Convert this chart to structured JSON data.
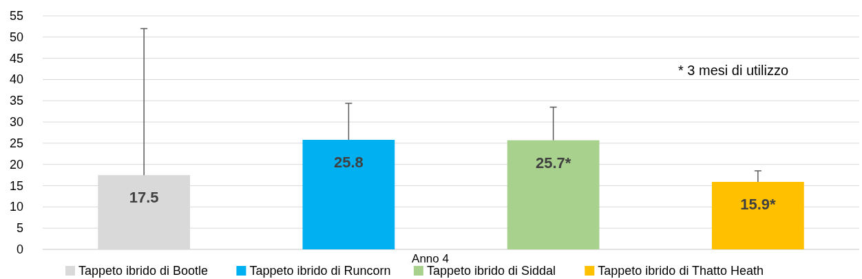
{
  "chart_data": {
    "type": "bar",
    "categories": [
      "Anno 4"
    ],
    "series": [
      {
        "name": "Tappeto ibrido di Bootle",
        "color": "#d9d9d9",
        "values": [
          17.5
        ],
        "errors": [
          [
            17.5,
            52
          ]
        ],
        "value_labels": [
          "17.5"
        ]
      },
      {
        "name": "Tappeto ibrido di Runcorn",
        "color": "#00b0f0",
        "values": [
          25.8
        ],
        "errors": [
          [
            25.8,
            34.4
          ]
        ],
        "value_labels": [
          "25.8"
        ]
      },
      {
        "name": "Tappeto ibrido di Siddal",
        "color": "#a9d18e",
        "values": [
          25.7
        ],
        "errors": [
          [
            25.7,
            33.5
          ]
        ],
        "value_labels": [
          "25.7*"
        ]
      },
      {
        "name": "Tappeto ibrido di Thatto Heath",
        "color": "#ffc000",
        "values": [
          15.9
        ],
        "errors": [
          [
            15.9,
            18.5
          ]
        ],
        "value_labels": [
          "15.9*"
        ]
      }
    ],
    "ylim": [
      0,
      55
    ],
    "yticks": [
      0,
      5,
      10,
      15,
      20,
      25,
      30,
      35,
      40,
      45,
      50,
      55
    ],
    "grid": "y",
    "legend": "bottom",
    "annotations": [
      "* 3 mesi di utilizzo"
    ]
  }
}
